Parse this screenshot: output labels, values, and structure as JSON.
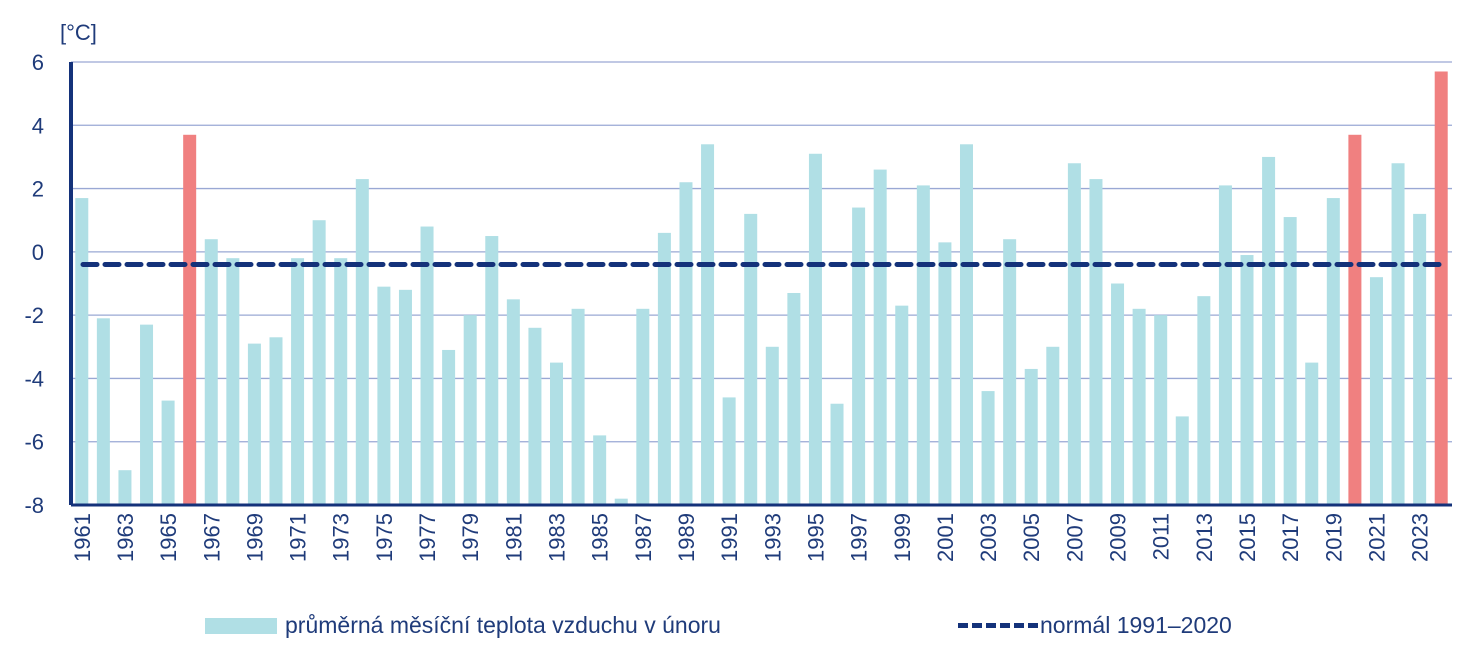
{
  "chart_data": {
    "type": "bar",
    "title": "",
    "ylabel": "[°C]",
    "xlabel": "",
    "ylim": [
      -8,
      6
    ],
    "yticks": [
      -8,
      -6,
      -4,
      -2,
      0,
      2,
      4,
      6
    ],
    "grid": true,
    "legend_placement": "bottom",
    "categories": [
      1961,
      1962,
      1963,
      1964,
      1965,
      1966,
      1967,
      1968,
      1969,
      1970,
      1971,
      1972,
      1973,
      1974,
      1975,
      1976,
      1977,
      1978,
      1979,
      1980,
      1981,
      1982,
      1983,
      1984,
      1985,
      1986,
      1987,
      1988,
      1989,
      1990,
      1991,
      1992,
      1993,
      1994,
      1995,
      1996,
      1997,
      1998,
      1999,
      2000,
      2001,
      2002,
      2003,
      2004,
      2005,
      2006,
      2007,
      2008,
      2009,
      2010,
      2011,
      2012,
      2013,
      2014,
      2015,
      2016,
      2017,
      2018,
      2019,
      2020,
      2021,
      2022,
      2023,
      2024
    ],
    "series": [
      {
        "name": "průměrná měsíční teplota vzduchu v únoru",
        "color": "#b0dfe5",
        "values": [
          1.7,
          -2.1,
          -6.9,
          -2.3,
          -4.7,
          3.7,
          0.4,
          -0.2,
          -2.9,
          -2.7,
          -0.2,
          1.0,
          -0.2,
          2.3,
          -1.1,
          -1.2,
          0.8,
          -3.1,
          -2.0,
          0.5,
          -1.5,
          -2.4,
          -3.5,
          -1.8,
          -5.8,
          -7.8,
          -1.8,
          0.6,
          2.2,
          3.4,
          -4.6,
          1.2,
          -3.0,
          -1.3,
          3.1,
          -4.8,
          1.4,
          2.6,
          -1.7,
          2.1,
          0.3,
          3.4,
          -4.4,
          0.4,
          -3.7,
          -3.0,
          2.8,
          2.3,
          -1.0,
          -1.8,
          -2.0,
          -5.2,
          -1.4,
          2.1,
          -0.1,
          3.0,
          1.1,
          -3.5,
          1.7,
          3.7,
          -0.8,
          2.8,
          1.2,
          5.7
        ]
      },
      {
        "name": "normál 1991–2020",
        "type": "line",
        "style": "dashed",
        "color": "#14327a",
        "value": -0.4
      }
    ],
    "highlight_years": [
      1966,
      2020,
      2024
    ],
    "highlight_color": "#f08080"
  }
}
